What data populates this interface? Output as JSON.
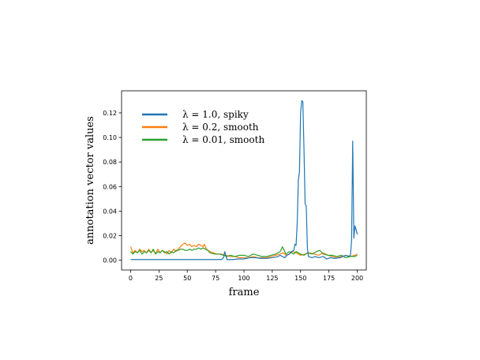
{
  "chart_data": {
    "type": "line",
    "xlabel": "frame",
    "ylabel": "annotation vector values",
    "xlim": [
      -8,
      208
    ],
    "ylim": [
      -0.008,
      0.138
    ],
    "xticks": [
      0,
      25,
      50,
      75,
      100,
      125,
      150,
      175,
      200
    ],
    "yticks": [
      0.0,
      0.02,
      0.04,
      0.06,
      0.08,
      0.1,
      0.12
    ],
    "ytick_labels": [
      "0.00",
      "0.02",
      "0.04",
      "0.06",
      "0.08",
      "0.10",
      "0.12"
    ],
    "grid": false,
    "legend_position": "top-left",
    "series": [
      {
        "name": "λ = 1.0, spiky",
        "color": "#1f77b4",
        "points": [
          [
            0,
            0.0005
          ],
          [
            10,
            0.0005
          ],
          [
            20,
            0.0005
          ],
          [
            30,
            0.0005
          ],
          [
            40,
            0.0005
          ],
          [
            50,
            0.0005
          ],
          [
            60,
            0.0005
          ],
          [
            70,
            0.0005
          ],
          [
            80,
            0.0005
          ],
          [
            82,
            0.002
          ],
          [
            83,
            0.007
          ],
          [
            84,
            0.004
          ],
          [
            85,
            0.0005
          ],
          [
            90,
            0.0005
          ],
          [
            95,
            0.001
          ],
          [
            100,
            0.001
          ],
          [
            105,
            0.002
          ],
          [
            110,
            0.002
          ],
          [
            115,
            0.0015
          ],
          [
            120,
            0.0015
          ],
          [
            125,
            0.002
          ],
          [
            128,
            0.0025
          ],
          [
            130,
            0.003
          ],
          [
            132,
            0.004
          ],
          [
            134,
            0.003
          ],
          [
            136,
            0.002
          ],
          [
            138,
            0.004
          ],
          [
            140,
            0.005
          ],
          [
            142,
            0.007
          ],
          [
            144,
            0.008
          ],
          [
            145,
            0.013
          ],
          [
            146,
            0.012
          ],
          [
            147,
            0.03
          ],
          [
            148,
            0.065
          ],
          [
            149,
            0.072
          ],
          [
            150,
            0.12
          ],
          [
            151,
            0.13
          ],
          [
            152,
            0.129
          ],
          [
            153,
            0.09
          ],
          [
            154,
            0.046
          ],
          [
            155,
            0.044
          ],
          [
            156,
            0.01
          ],
          [
            157,
            0.003
          ],
          [
            160,
            0.002
          ],
          [
            163,
            0.003
          ],
          [
            166,
            0.002
          ],
          [
            170,
            0.003
          ],
          [
            173,
            0.001
          ],
          [
            176,
            0.002
          ],
          [
            180,
            0.0015
          ],
          [
            185,
            0.002
          ],
          [
            190,
            0.004
          ],
          [
            192,
            0.003
          ],
          [
            194,
            0.004
          ],
          [
            195,
            0.016
          ],
          [
            196,
            0.097
          ],
          [
            197,
            0.018
          ],
          [
            198,
            0.028
          ],
          [
            199,
            0.025
          ],
          [
            200,
            0.021
          ]
        ]
      },
      {
        "name": "λ = 0.2, smooth",
        "color": "#ff7f0e",
        "points": [
          [
            0,
            0.011
          ],
          [
            2,
            0.006
          ],
          [
            4,
            0.008
          ],
          [
            6,
            0.006
          ],
          [
            8,
            0.009
          ],
          [
            10,
            0.007
          ],
          [
            12,
            0.008
          ],
          [
            14,
            0.006
          ],
          [
            16,
            0.009
          ],
          [
            18,
            0.006
          ],
          [
            20,
            0.008
          ],
          [
            22,
            0.005
          ],
          [
            24,
            0.009
          ],
          [
            26,
            0.006
          ],
          [
            28,
            0.008
          ],
          [
            30,
            0.007
          ],
          [
            32,
            0.005
          ],
          [
            34,
            0.008
          ],
          [
            36,
            0.006
          ],
          [
            38,
            0.009
          ],
          [
            40,
            0.007
          ],
          [
            42,
            0.009
          ],
          [
            44,
            0.011
          ],
          [
            46,
            0.013
          ],
          [
            48,
            0.014
          ],
          [
            50,
            0.012
          ],
          [
            52,
            0.013
          ],
          [
            54,
            0.011
          ],
          [
            56,
            0.012
          ],
          [
            58,
            0.011
          ],
          [
            60,
            0.013
          ],
          [
            62,
            0.012
          ],
          [
            64,
            0.011
          ],
          [
            65,
            0.013
          ],
          [
            67,
            0.009
          ],
          [
            70,
            0.007
          ],
          [
            73,
            0.006
          ],
          [
            76,
            0.005
          ],
          [
            80,
            0.005
          ],
          [
            84,
            0.004
          ],
          [
            88,
            0.003
          ],
          [
            92,
            0.003
          ],
          [
            96,
            0.002
          ],
          [
            100,
            0.002
          ],
          [
            104,
            0.002
          ],
          [
            108,
            0.003
          ],
          [
            112,
            0.002
          ],
          [
            116,
            0.002
          ],
          [
            120,
            0.002
          ],
          [
            124,
            0.003
          ],
          [
            128,
            0.004
          ],
          [
            132,
            0.005
          ],
          [
            135,
            0.006
          ],
          [
            137,
            0.004
          ],
          [
            140,
            0.005
          ],
          [
            143,
            0.007
          ],
          [
            146,
            0.006
          ],
          [
            150,
            0.004
          ],
          [
            154,
            0.005
          ],
          [
            158,
            0.006
          ],
          [
            162,
            0.005
          ],
          [
            166,
            0.004
          ],
          [
            170,
            0.006
          ],
          [
            174,
            0.004
          ],
          [
            178,
            0.003
          ],
          [
            182,
            0.002
          ],
          [
            186,
            0.003
          ],
          [
            190,
            0.004
          ],
          [
            194,
            0.003
          ],
          [
            198,
            0.004
          ],
          [
            200,
            0.005
          ]
        ]
      },
      {
        "name": "λ = 0.01, smooth",
        "color": "#2ca02c",
        "points": [
          [
            0,
            0.007
          ],
          [
            2,
            0.005
          ],
          [
            4,
            0.007
          ],
          [
            6,
            0.006
          ],
          [
            8,
            0.008
          ],
          [
            10,
            0.005
          ],
          [
            12,
            0.007
          ],
          [
            14,
            0.006
          ],
          [
            16,
            0.008
          ],
          [
            18,
            0.006
          ],
          [
            20,
            0.009
          ],
          [
            22,
            0.005
          ],
          [
            24,
            0.007
          ],
          [
            26,
            0.006
          ],
          [
            28,
            0.008
          ],
          [
            30,
            0.006
          ],
          [
            32,
            0.007
          ],
          [
            34,
            0.005
          ],
          [
            36,
            0.007
          ],
          [
            38,
            0.006
          ],
          [
            40,
            0.008
          ],
          [
            42,
            0.008
          ],
          [
            44,
            0.009
          ],
          [
            46,
            0.009
          ],
          [
            48,
            0.008
          ],
          [
            50,
            0.008
          ],
          [
            52,
            0.009
          ],
          [
            54,
            0.008
          ],
          [
            56,
            0.009
          ],
          [
            58,
            0.009
          ],
          [
            60,
            0.01
          ],
          [
            62,
            0.009
          ],
          [
            64,
            0.01
          ],
          [
            66,
            0.009
          ],
          [
            68,
            0.008
          ],
          [
            70,
            0.006
          ],
          [
            74,
            0.005
          ],
          [
            78,
            0.005
          ],
          [
            82,
            0.004
          ],
          [
            85,
            0.003
          ],
          [
            88,
            0.004
          ],
          [
            92,
            0.003
          ],
          [
            96,
            0.004
          ],
          [
            100,
            0.004
          ],
          [
            104,
            0.003
          ],
          [
            108,
            0.005
          ],
          [
            112,
            0.004
          ],
          [
            116,
            0.003
          ],
          [
            120,
            0.003
          ],
          [
            124,
            0.004
          ],
          [
            128,
            0.005
          ],
          [
            130,
            0.006
          ],
          [
            132,
            0.007
          ],
          [
            134,
            0.011
          ],
          [
            135,
            0.009
          ],
          [
            137,
            0.005
          ],
          [
            140,
            0.007
          ],
          [
            142,
            0.006
          ],
          [
            144,
            0.005
          ],
          [
            146,
            0.007
          ],
          [
            148,
            0.006
          ],
          [
            150,
            0.005
          ],
          [
            153,
            0.004
          ],
          [
            156,
            0.006
          ],
          [
            160,
            0.005
          ],
          [
            164,
            0.007
          ],
          [
            167,
            0.008
          ],
          [
            170,
            0.005
          ],
          [
            174,
            0.004
          ],
          [
            178,
            0.004
          ],
          [
            182,
            0.003
          ],
          [
            186,
            0.004
          ],
          [
            190,
            0.002
          ],
          [
            194,
            0.003
          ],
          [
            198,
            0.003
          ],
          [
            200,
            0.004
          ]
        ]
      }
    ]
  }
}
